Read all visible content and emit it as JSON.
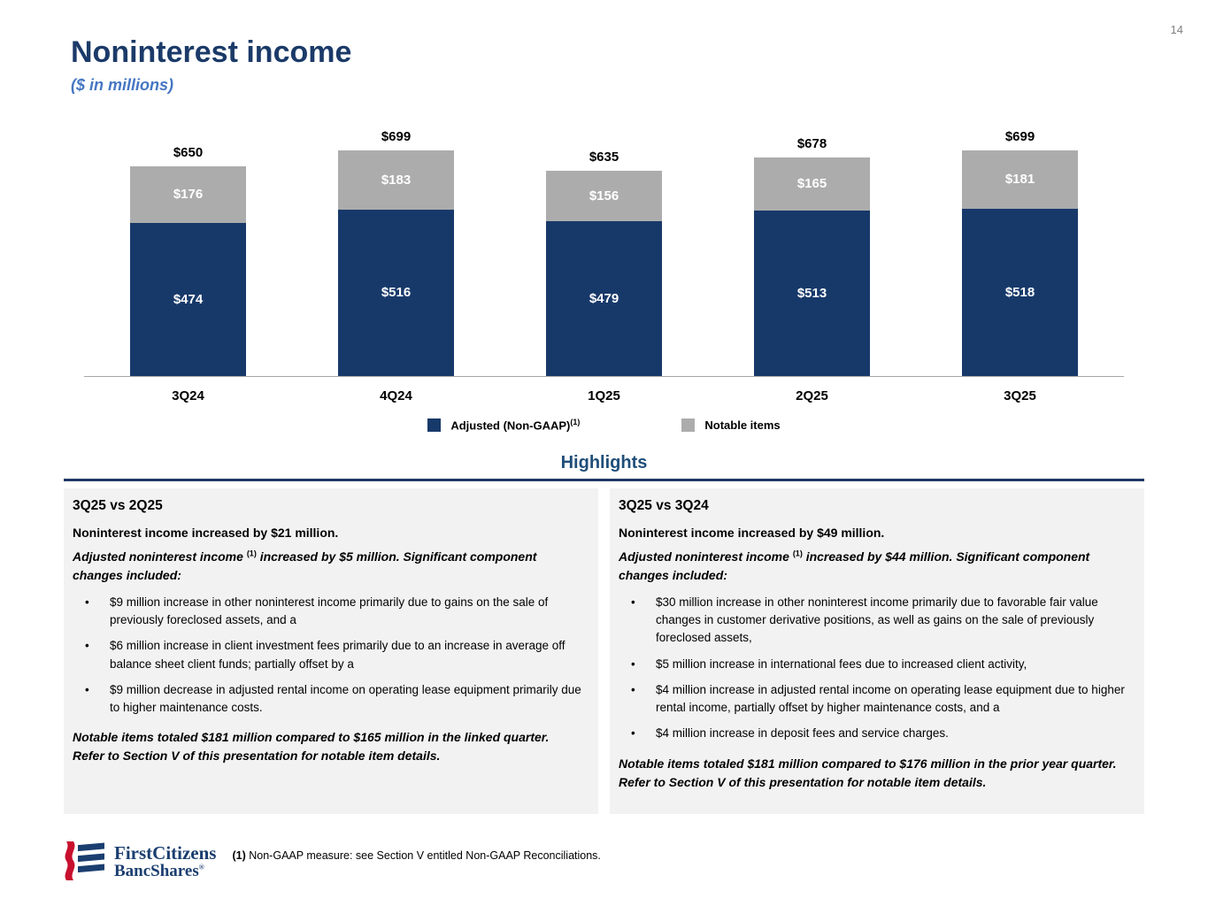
{
  "page_number": "14",
  "header": {
    "title": "Noninterest income",
    "subtitle": "($ in millions)"
  },
  "chart_data": {
    "type": "bar",
    "stacked": true,
    "title": "Noninterest income ($ in millions)",
    "categories": [
      "3Q24",
      "4Q24",
      "1Q25",
      "2Q25",
      "3Q25"
    ],
    "series": [
      {
        "name": "Adjusted (Non-GAAP)",
        "color": "#17396A",
        "values": [
          474,
          516,
          479,
          513,
          518
        ]
      },
      {
        "name": "Notable items",
        "color": "#ACACAC",
        "values": [
          176,
          183,
          156,
          165,
          181
        ]
      }
    ],
    "totals": [
      650,
      699,
      635,
      678,
      699
    ],
    "value_prefix": "$",
    "ylim": [
      0,
      699
    ],
    "grid": false,
    "legend_position": "bottom",
    "legend": [
      {
        "label": "Adjusted (Non-GAAP)",
        "superscript": "(1)",
        "color": "#17396A"
      },
      {
        "label": "Notable items",
        "superscript": "",
        "color": "#ACACAC"
      }
    ]
  },
  "highlights": {
    "title": "Highlights",
    "left": {
      "heading": "3Q25 vs 2Q25",
      "lead": "Noninterest income increased by $21 million.",
      "sub_lead_pre": "Adjusted noninterest income",
      "sub_lead_sup": "(1)",
      "sub_lead_post": "increased by $5 million. Significant component changes included:",
      "bullets": [
        "$9 million increase in other noninterest income primarily due to gains on the sale of previously foreclosed assets, and a",
        "$6 million increase in client investment fees primarily due to an increase in average off balance sheet client funds; partially offset by a",
        "$9 million decrease in adjusted rental income on operating lease equipment primarily due to higher maintenance costs."
      ],
      "closing": "Notable items totaled $181 million compared to $165 million in the linked quarter. Refer to Section V of this presentation for notable item details."
    },
    "right": {
      "heading": "3Q25 vs 3Q24",
      "lead": "Noninterest income increased by $49 million.",
      "sub_lead_pre": "Adjusted noninterest income",
      "sub_lead_sup": "(1)",
      "sub_lead_post": "increased by $44 million. Significant component changes included:",
      "bullets": [
        "$30 million increase in other noninterest income primarily due to favorable fair value changes in customer derivative positions, as well as gains on the sale of previously foreclosed assets,",
        "$5 million increase in international fees due to increased client activity,",
        "$4 million increase in adjusted rental income on operating lease equipment due to higher rental income, partially offset by higher maintenance costs, and a",
        "$4 million increase in deposit fees and service charges."
      ],
      "closing": "Notable items totaled $181 million compared to $176 million in the prior year quarter. Refer to Section V of this presentation for notable item details."
    }
  },
  "footer": {
    "logo_line1": "FirstCitizens",
    "logo_line2": "BancShares",
    "logo_registered": "®",
    "footnote_marker": "(1)",
    "footnote_text": "Non-GAAP measure: see Section V entitled Non-GAAP Reconciliations."
  },
  "colors": {
    "navy_bar": "#17396A",
    "gray_bar": "#ACACAC",
    "title_navy": "#1B3A68",
    "subtitle_blue": "#4576C2",
    "highlights_title": "#1F4E79",
    "rule_navy": "#1F3864",
    "panel_bg": "#F2F2F2",
    "logo_red": "#C8102E",
    "logo_blue": "#1B3E70"
  }
}
